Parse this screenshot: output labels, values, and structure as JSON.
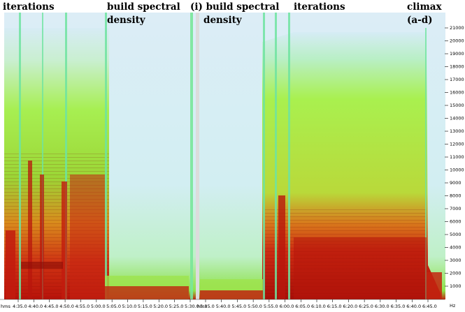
{
  "colors": {
    "background": "#ffffff",
    "spectrum_low": "#cfe9f4",
    "spectrum_mid": "#a7ef52",
    "spectrum_high": "#cf1e10",
    "bar": "#dcdcdc"
  },
  "annotations": [
    {
      "id": "iterations-1",
      "lines": [
        "iterations"
      ]
    },
    {
      "id": "build-1",
      "lines": [
        "build spectral",
        "density"
      ]
    },
    {
      "id": "build-2",
      "lines": [
        "(i) build spectral",
        "density"
      ]
    },
    {
      "id": "iterations-2",
      "lines": [
        "iterations"
      ]
    },
    {
      "id": "climax",
      "lines": [
        "climax",
        "(a-d)"
      ]
    }
  ],
  "frequency_axis": {
    "unit_label": "Hz",
    "ticks": [
      21000,
      20000,
      19000,
      18000,
      17000,
      16000,
      15000,
      14000,
      13000,
      12000,
      11000,
      10000,
      9000,
      8000,
      7000,
      6000,
      5000,
      4000,
      3000,
      2000,
      1000
    ]
  },
  "time_axis": {
    "unit_label": "hms",
    "panels": [
      {
        "ticks": [
          "4:35.0",
          "4:40.0",
          "4:45.0",
          "4:50.0",
          "4:55.0",
          "5:00.0",
          "5:05.0",
          "5:10.0",
          "5:15.0",
          "5:20.0",
          "5:25.0",
          "5:30.0"
        ]
      },
      {
        "ticks": [
          "5:35.0",
          "5:40.0",
          "5:45.0",
          "5:50.0",
          "5:55.0",
          "6:00.0",
          "6:05.0",
          "6:10.0",
          "6:15.0",
          "6:20.0",
          "6:25.0",
          "6:30.0",
          "6:35.0",
          "6:40.0",
          "6:45.0"
        ]
      }
    ]
  }
}
